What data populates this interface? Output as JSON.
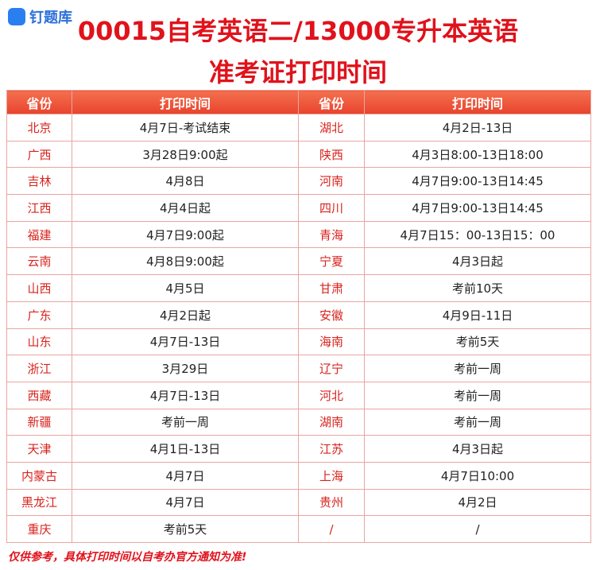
{
  "logo": "钉题库",
  "title": [
    "00015自考英语二/13000专升本英语",
    "准考证打印时间"
  ],
  "table": {
    "header": [
      "省份",
      "打印时间",
      "省份",
      "打印时间"
    ],
    "rows": [
      [
        "北京",
        "4月7日-考试结束",
        "湖北",
        "4月2日-13日"
      ],
      [
        "广西",
        "3月28日9:00起",
        "陕西",
        "4月3日8:00-13日18:00"
      ],
      [
        "吉林",
        "4月8日",
        "河南",
        "4月7日9:00-13日14:45"
      ],
      [
        "江西",
        "4月4日起",
        "四川",
        "4月7日9:00-13日14:45"
      ],
      [
        "福建",
        "4月7日9:00起",
        "青海",
        "4月7日15：00-13日15：00"
      ],
      [
        "云南",
        "4月8日9:00起",
        "宁夏",
        "4月3日起"
      ],
      [
        "山西",
        "4月5日",
        "甘肃",
        "考前10天"
      ],
      [
        "广东",
        "4月2日起",
        "安徽",
        "4月9日-11日"
      ],
      [
        "山东",
        "4月7日-13日",
        "海南",
        "考前5天"
      ],
      [
        "浙江",
        "3月29日",
        "辽宁",
        "考前一周"
      ],
      [
        "西藏",
        "4月7日-13日",
        "河北",
        "考前一周"
      ],
      [
        "新疆",
        "考前一周",
        "湖南",
        "考前一周"
      ],
      [
        "天津",
        "4月1日-13日",
        "江苏",
        "4月3日起"
      ],
      [
        "内蒙古",
        "4月7日",
        "上海",
        "4月7日10:00"
      ],
      [
        "黑龙江",
        "4月7日",
        "贵州",
        "4月2日"
      ],
      [
        "重庆",
        "考前5天",
        "/",
        "/"
      ]
    ]
  },
  "note": "仅供参考，具体打印时间以自考办官方通知为准!"
}
